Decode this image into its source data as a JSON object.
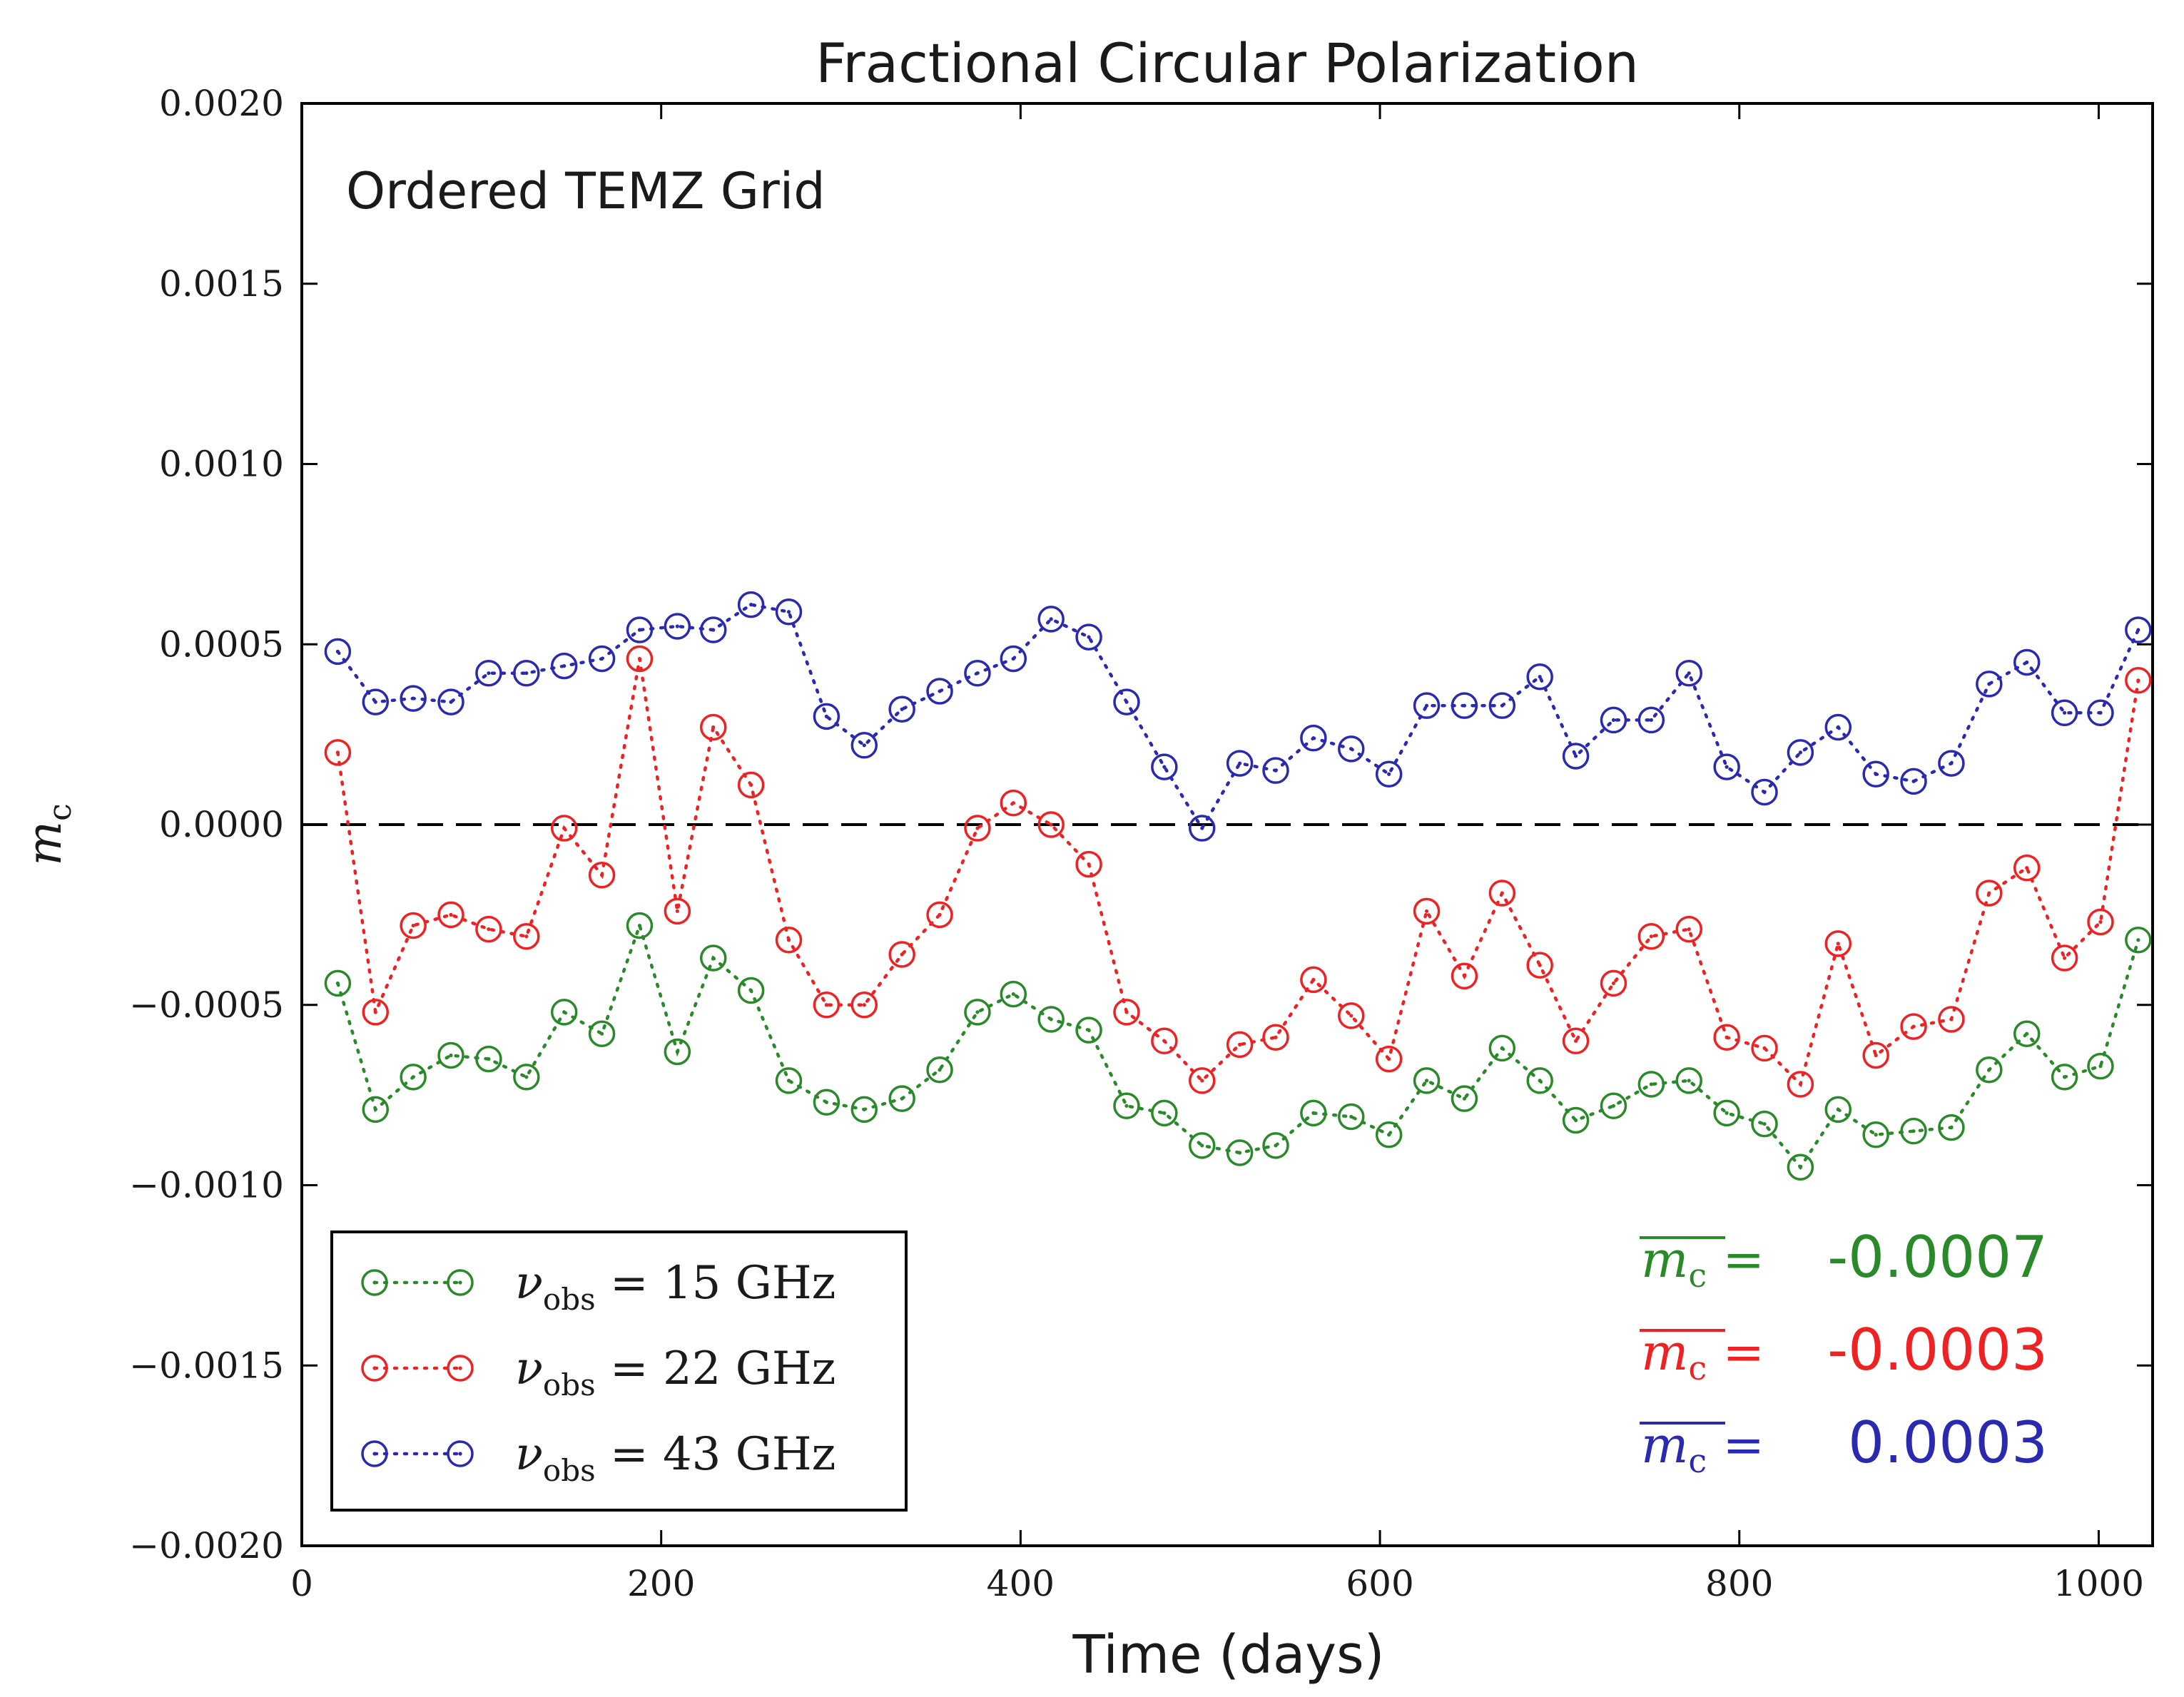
{
  "colors": {
    "green": "#2a8a2a",
    "red": "#ee2222",
    "blue": "#2a2ab0",
    "black": "#000000"
  },
  "chart_data": {
    "type": "line",
    "title": "Fractional Circular Polarization",
    "xlabel": "Time (days)",
    "ylabel": "m",
    "ylabel_sub": "c",
    "annotation": "Ordered TEMZ Grid",
    "xlim": [
      0,
      1030
    ],
    "ylim": [
      -0.002,
      0.002
    ],
    "xticks": [
      0,
      200,
      400,
      600,
      800,
      1000
    ],
    "xtick_labels": [
      "0",
      "200",
      "400",
      "600",
      "800",
      "1000"
    ],
    "yticks": [
      0.002,
      0.0015,
      0.001,
      0.0005,
      0.0,
      -0.0005,
      -0.001,
      -0.0015,
      -0.002
    ],
    "ytick_labels": [
      "0.0020",
      "0.0015",
      "0.0010",
      "0.0005",
      "0.0000",
      "−0.0005",
      "−0.0010",
      "−0.0015",
      "−0.0020"
    ],
    "reference_line": {
      "y": 0.0,
      "style": "dashed"
    },
    "x": [
      20,
      41,
      62,
      83,
      104,
      125,
      146,
      167,
      188,
      209,
      229,
      250,
      271,
      292,
      313,
      334,
      355,
      376,
      396,
      417,
      438,
      459,
      480,
      501,
      522,
      542,
      563,
      584,
      605,
      626,
      647,
      668,
      689,
      709,
      730,
      751,
      772,
      793,
      814,
      834,
      855,
      876,
      897,
      918,
      939,
      960,
      981,
      1001,
      1022
    ],
    "series": [
      {
        "name": "15 GHz",
        "legend_symbol": "ν",
        "legend_sub": "obs",
        "legend_rest": " = 15 GHz",
        "color_key": "green",
        "values": [
          -0.00044,
          -0.00079,
          -0.0007,
          -0.00064,
          -0.00065,
          -0.0007,
          -0.00052,
          -0.00058,
          -0.00028,
          -0.00063,
          -0.00037,
          -0.00046,
          -0.00071,
          -0.00077,
          -0.00079,
          -0.00076,
          -0.00068,
          -0.00052,
          -0.00047,
          -0.00054,
          -0.00057,
          -0.00078,
          -0.0008,
          -0.00089,
          -0.00091,
          -0.00089,
          -0.0008,
          -0.00081,
          -0.00086,
          -0.00071,
          -0.00076,
          -0.00062,
          -0.00071,
          -0.00082,
          -0.00078,
          -0.00072,
          -0.00071,
          -0.0008,
          -0.00083,
          -0.00095,
          -0.00079,
          -0.00086,
          -0.00085,
          -0.00084,
          -0.00068,
          -0.00058,
          -0.0007,
          -0.00067,
          -0.00032
        ]
      },
      {
        "name": "22 GHz",
        "legend_symbol": "ν",
        "legend_sub": "obs",
        "legend_rest": " = 22 GHz",
        "color_key": "red",
        "values": [
          0.0002,
          -0.00052,
          -0.00028,
          -0.00025,
          -0.00029,
          -0.00031,
          -1e-05,
          -0.00014,
          0.00046,
          -0.00024,
          0.00027,
          0.00011,
          -0.00032,
          -0.0005,
          -0.0005,
          -0.00036,
          -0.00025,
          -1e-05,
          6e-05,
          0.0,
          -0.00011,
          -0.00052,
          -0.0006,
          -0.00071,
          -0.00061,
          -0.00059,
          -0.00043,
          -0.00053,
          -0.00065,
          -0.00024,
          -0.00042,
          -0.00019,
          -0.00039,
          -0.0006,
          -0.00044,
          -0.00031,
          -0.00029,
          -0.00059,
          -0.00062,
          -0.00072,
          -0.00033,
          -0.00064,
          -0.00056,
          -0.00054,
          -0.00019,
          -0.00012,
          -0.00037,
          -0.00027,
          0.0004
        ]
      },
      {
        "name": "43 GHz",
        "legend_symbol": "ν",
        "legend_sub": "obs",
        "legend_rest": " = 43 GHz",
        "color_key": "blue",
        "values": [
          0.00048,
          0.00034,
          0.00035,
          0.00034,
          0.00042,
          0.00042,
          0.00044,
          0.00046,
          0.00054,
          0.00055,
          0.00054,
          0.00061,
          0.00059,
          0.0003,
          0.00022,
          0.00032,
          0.00037,
          0.00042,
          0.00046,
          0.00057,
          0.00052,
          0.00034,
          0.00016,
          -1e-05,
          0.00017,
          0.00015,
          0.00024,
          0.00021,
          0.00014,
          0.00033,
          0.00033,
          0.00033,
          0.00041,
          0.00019,
          0.00029,
          0.00029,
          0.00042,
          0.00016,
          9e-05,
          0.0002,
          0.00027,
          0.00014,
          0.00012,
          0.00017,
          0.00039,
          0.00045,
          0.00031,
          0.00031,
          0.00054
        ]
      }
    ],
    "means": [
      {
        "lhs": "m",
        "lhs_sub": "c",
        "eq": " = ",
        "value": "-0.0007",
        "color_key": "green"
      },
      {
        "lhs": "m",
        "lhs_sub": "c",
        "eq": " = ",
        "value": "-0.0003",
        "color_key": "red"
      },
      {
        "lhs": "m",
        "lhs_sub": "c",
        "eq": " = ",
        "value": "0.0003",
        "color_key": "blue"
      }
    ]
  }
}
